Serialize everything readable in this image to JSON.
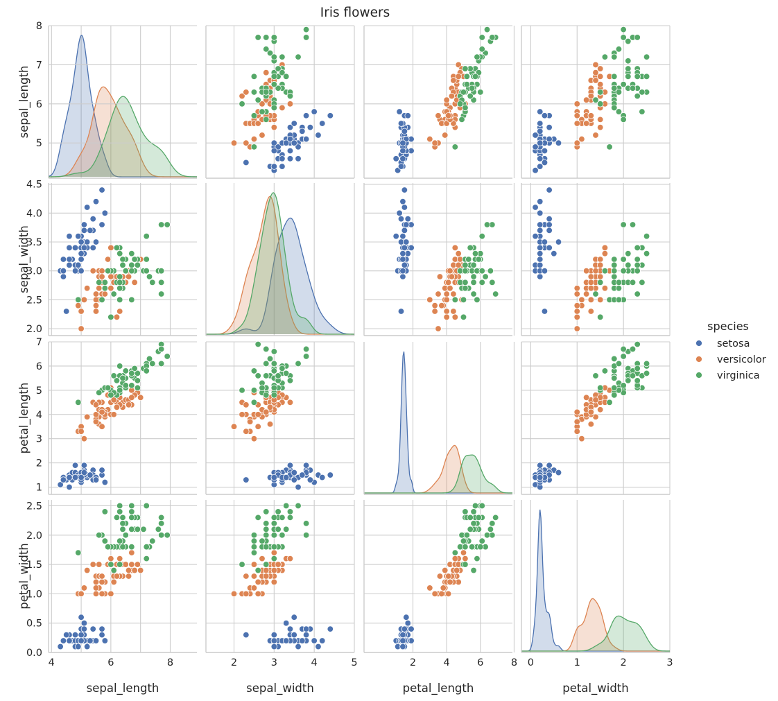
{
  "chart_data": {
    "type": "scatter",
    "title": "Iris flowers",
    "variables": [
      "sepal_length",
      "sepal_width",
      "petal_length",
      "petal_width"
    ],
    "axes": {
      "sepal_length": {
        "lim": [
          3.9,
          8.9
        ],
        "ticks": [
          4,
          6,
          8
        ],
        "grid": [
          4,
          5,
          6,
          7,
          8
        ],
        "yticks": [
          5,
          6,
          7,
          8
        ],
        "ylim": [
          4.1,
          8.0
        ]
      },
      "sepal_width": {
        "lim": [
          1.3,
          5.0
        ],
        "ticks": [
          2,
          3,
          4,
          5
        ],
        "grid": [
          2,
          3,
          4,
          5
        ],
        "yticks": [
          2.0,
          2.5,
          3.0,
          3.5,
          4.0,
          4.5
        ],
        "ylim": [
          1.88,
          4.52
        ]
      },
      "petal_length": {
        "lim": [
          -0.9,
          7.9
        ],
        "ticks": [
          2,
          4,
          6,
          8
        ],
        "grid": [
          2,
          4,
          6,
          8
        ],
        "yticks": [
          1,
          2,
          3,
          4,
          5,
          6,
          7
        ],
        "ylim": [
          0.7,
          7.0
        ]
      },
      "petal_width": {
        "lim": [
          -0.2,
          3.0
        ],
        "ticks": [
          0,
          1,
          2,
          3
        ],
        "grid": [
          0,
          1,
          2,
          3
        ],
        "yticks": [
          0.0,
          0.5,
          1.0,
          1.5,
          2.0,
          2.5
        ],
        "ylim": [
          0.0,
          2.6
        ]
      }
    },
    "legend": {
      "title": "species",
      "position": "right"
    },
    "grid": true,
    "series": [
      {
        "name": "setosa",
        "color": "#4c72b0",
        "columns": [
          "sepal_length",
          "sepal_width",
          "petal_length",
          "petal_width"
        ],
        "points": [
          [
            5.1,
            3.5,
            1.4,
            0.2
          ],
          [
            4.9,
            3.0,
            1.4,
            0.2
          ],
          [
            4.7,
            3.2,
            1.3,
            0.2
          ],
          [
            4.6,
            3.1,
            1.5,
            0.2
          ],
          [
            5.0,
            3.6,
            1.4,
            0.2
          ],
          [
            5.4,
            3.9,
            1.7,
            0.4
          ],
          [
            4.6,
            3.4,
            1.4,
            0.3
          ],
          [
            5.0,
            3.4,
            1.5,
            0.2
          ],
          [
            4.4,
            2.9,
            1.4,
            0.2
          ],
          [
            4.9,
            3.1,
            1.5,
            0.1
          ],
          [
            5.4,
            3.7,
            1.5,
            0.2
          ],
          [
            4.8,
            3.4,
            1.6,
            0.2
          ],
          [
            4.8,
            3.0,
            1.4,
            0.1
          ],
          [
            4.3,
            3.0,
            1.1,
            0.1
          ],
          [
            5.8,
            4.0,
            1.2,
            0.2
          ],
          [
            5.7,
            4.4,
            1.5,
            0.4
          ],
          [
            5.4,
            3.9,
            1.3,
            0.4
          ],
          [
            5.1,
            3.5,
            1.4,
            0.3
          ],
          [
            5.7,
            3.8,
            1.7,
            0.3
          ],
          [
            5.1,
            3.8,
            1.5,
            0.3
          ],
          [
            5.4,
            3.4,
            1.7,
            0.2
          ],
          [
            5.1,
            3.7,
            1.5,
            0.4
          ],
          [
            4.6,
            3.6,
            1.0,
            0.2
          ],
          [
            5.1,
            3.3,
            1.7,
            0.5
          ],
          [
            4.8,
            3.4,
            1.9,
            0.2
          ],
          [
            5.0,
            3.0,
            1.6,
            0.2
          ],
          [
            5.0,
            3.4,
            1.6,
            0.4
          ],
          [
            5.2,
            3.5,
            1.5,
            0.2
          ],
          [
            5.2,
            3.4,
            1.4,
            0.2
          ],
          [
            4.7,
            3.2,
            1.6,
            0.2
          ],
          [
            4.8,
            3.1,
            1.6,
            0.2
          ],
          [
            5.4,
            3.4,
            1.5,
            0.4
          ],
          [
            5.2,
            4.1,
            1.5,
            0.1
          ],
          [
            5.5,
            4.2,
            1.4,
            0.2
          ],
          [
            4.9,
            3.1,
            1.5,
            0.2
          ],
          [
            5.0,
            3.2,
            1.2,
            0.2
          ],
          [
            5.5,
            3.5,
            1.3,
            0.2
          ],
          [
            4.9,
            3.6,
            1.4,
            0.1
          ],
          [
            4.4,
            3.0,
            1.3,
            0.2
          ],
          [
            5.1,
            3.4,
            1.5,
            0.2
          ],
          [
            5.0,
            3.5,
            1.3,
            0.3
          ],
          [
            4.5,
            2.3,
            1.3,
            0.3
          ],
          [
            4.4,
            3.2,
            1.3,
            0.2
          ],
          [
            5.0,
            3.5,
            1.6,
            0.6
          ],
          [
            5.1,
            3.8,
            1.9,
            0.4
          ],
          [
            4.8,
            3.0,
            1.4,
            0.3
          ],
          [
            5.1,
            3.8,
            1.6,
            0.2
          ],
          [
            4.6,
            3.2,
            1.4,
            0.2
          ],
          [
            5.3,
            3.7,
            1.5,
            0.2
          ],
          [
            5.0,
            3.3,
            1.4,
            0.2
          ]
        ]
      },
      {
        "name": "versicolor",
        "color": "#dd8452",
        "columns": [
          "sepal_length",
          "sepal_width",
          "petal_length",
          "petal_width"
        ],
        "points": [
          [
            7.0,
            3.2,
            4.7,
            1.4
          ],
          [
            6.4,
            3.2,
            4.5,
            1.5
          ],
          [
            6.9,
            3.1,
            4.9,
            1.5
          ],
          [
            5.5,
            2.3,
            4.0,
            1.3
          ],
          [
            6.5,
            2.8,
            4.6,
            1.5
          ],
          [
            5.7,
            2.8,
            4.5,
            1.3
          ],
          [
            6.3,
            3.3,
            4.7,
            1.6
          ],
          [
            4.9,
            2.4,
            3.3,
            1.0
          ],
          [
            6.6,
            2.9,
            4.6,
            1.3
          ],
          [
            5.2,
            2.7,
            3.9,
            1.4
          ],
          [
            5.0,
            2.0,
            3.5,
            1.0
          ],
          [
            5.9,
            3.0,
            4.2,
            1.5
          ],
          [
            6.0,
            2.2,
            4.0,
            1.0
          ],
          [
            6.1,
            2.9,
            4.7,
            1.4
          ],
          [
            5.6,
            2.9,
            3.6,
            1.3
          ],
          [
            6.7,
            3.1,
            4.4,
            1.4
          ],
          [
            5.6,
            3.0,
            4.5,
            1.5
          ],
          [
            5.8,
            2.7,
            4.1,
            1.0
          ],
          [
            6.2,
            2.2,
            4.5,
            1.5
          ],
          [
            5.6,
            2.5,
            3.9,
            1.1
          ],
          [
            5.9,
            3.2,
            4.8,
            1.8
          ],
          [
            6.1,
            2.8,
            4.0,
            1.3
          ],
          [
            6.3,
            2.5,
            4.9,
            1.5
          ],
          [
            6.1,
            2.8,
            4.7,
            1.2
          ],
          [
            6.4,
            2.9,
            4.3,
            1.3
          ],
          [
            6.6,
            3.0,
            4.4,
            1.4
          ],
          [
            6.8,
            2.8,
            4.8,
            1.4
          ],
          [
            6.7,
            3.0,
            5.0,
            1.7
          ],
          [
            6.0,
            2.9,
            4.5,
            1.5
          ],
          [
            5.7,
            2.6,
            3.5,
            1.0
          ],
          [
            5.5,
            2.4,
            3.8,
            1.1
          ],
          [
            5.5,
            2.4,
            3.7,
            1.0
          ],
          [
            5.8,
            2.7,
            3.9,
            1.2
          ],
          [
            6.0,
            2.7,
            5.1,
            1.6
          ],
          [
            5.4,
            3.0,
            4.5,
            1.5
          ],
          [
            6.0,
            3.4,
            4.5,
            1.6
          ],
          [
            6.7,
            3.1,
            4.7,
            1.5
          ],
          [
            6.3,
            2.3,
            4.4,
            1.3
          ],
          [
            5.6,
            3.0,
            4.1,
            1.3
          ],
          [
            5.5,
            2.5,
            4.0,
            1.3
          ],
          [
            5.5,
            2.6,
            4.4,
            1.2
          ],
          [
            6.1,
            3.0,
            4.6,
            1.4
          ],
          [
            5.8,
            2.6,
            4.0,
            1.2
          ],
          [
            5.0,
            2.3,
            3.3,
            1.0
          ],
          [
            5.6,
            2.7,
            4.2,
            1.3
          ],
          [
            5.7,
            3.0,
            4.2,
            1.2
          ],
          [
            5.7,
            2.9,
            4.2,
            1.3
          ],
          [
            6.2,
            2.9,
            4.3,
            1.3
          ],
          [
            5.1,
            2.5,
            3.0,
            1.1
          ],
          [
            5.7,
            2.8,
            4.1,
            1.3
          ]
        ]
      },
      {
        "name": "virginica",
        "color": "#55a868",
        "columns": [
          "sepal_length",
          "sepal_width",
          "petal_length",
          "petal_width"
        ],
        "points": [
          [
            6.3,
            3.3,
            6.0,
            2.5
          ],
          [
            5.8,
            2.7,
            5.1,
            1.9
          ],
          [
            7.1,
            3.0,
            5.9,
            2.1
          ],
          [
            6.3,
            2.9,
            5.6,
            1.8
          ],
          [
            6.5,
            3.0,
            5.8,
            2.2
          ],
          [
            7.6,
            3.0,
            6.6,
            2.1
          ],
          [
            4.9,
            2.5,
            4.5,
            1.7
          ],
          [
            7.3,
            2.9,
            6.3,
            1.8
          ],
          [
            6.7,
            2.5,
            5.8,
            1.8
          ],
          [
            7.2,
            3.6,
            6.1,
            2.5
          ],
          [
            6.5,
            3.2,
            5.1,
            2.0
          ],
          [
            6.4,
            2.7,
            5.3,
            1.9
          ],
          [
            6.8,
            3.0,
            5.5,
            2.1
          ],
          [
            5.7,
            2.5,
            5.0,
            2.0
          ],
          [
            5.8,
            2.8,
            5.1,
            2.4
          ],
          [
            6.4,
            3.2,
            5.3,
            2.3
          ],
          [
            6.5,
            3.0,
            5.5,
            1.8
          ],
          [
            7.7,
            3.8,
            6.7,
            2.2
          ],
          [
            7.7,
            2.6,
            6.9,
            2.3
          ],
          [
            6.0,
            2.2,
            5.0,
            1.5
          ],
          [
            6.9,
            3.2,
            5.7,
            2.3
          ],
          [
            5.6,
            2.8,
            4.9,
            2.0
          ],
          [
            7.7,
            2.8,
            6.7,
            2.0
          ],
          [
            6.3,
            2.7,
            4.9,
            1.8
          ],
          [
            6.7,
            3.3,
            5.7,
            2.1
          ],
          [
            7.2,
            3.2,
            6.0,
            1.8
          ],
          [
            6.2,
            2.8,
            4.8,
            1.8
          ],
          [
            6.1,
            3.0,
            4.9,
            1.8
          ],
          [
            6.4,
            2.8,
            5.6,
            2.1
          ],
          [
            7.2,
            3.0,
            5.8,
            1.6
          ],
          [
            7.4,
            2.8,
            6.1,
            1.9
          ],
          [
            7.9,
            3.8,
            6.4,
            2.0
          ],
          [
            6.4,
            2.8,
            5.6,
            2.2
          ],
          [
            6.3,
            2.8,
            5.1,
            1.5
          ],
          [
            6.1,
            2.6,
            5.6,
            1.4
          ],
          [
            7.7,
            3.0,
            6.1,
            2.3
          ],
          [
            6.3,
            3.4,
            5.6,
            2.4
          ],
          [
            6.4,
            3.1,
            5.5,
            1.8
          ],
          [
            6.0,
            3.0,
            4.8,
            1.8
          ],
          [
            6.9,
            3.1,
            5.4,
            2.1
          ],
          [
            6.7,
            3.1,
            5.6,
            2.4
          ],
          [
            6.9,
            3.1,
            5.1,
            2.3
          ],
          [
            5.8,
            2.7,
            5.1,
            1.9
          ],
          [
            6.8,
            3.2,
            5.9,
            2.3
          ],
          [
            6.7,
            3.3,
            5.7,
            2.5
          ],
          [
            6.7,
            3.0,
            5.2,
            2.3
          ],
          [
            6.3,
            2.5,
            5.0,
            1.9
          ],
          [
            6.5,
            3.0,
            5.2,
            2.0
          ],
          [
            6.2,
            3.4,
            5.4,
            2.3
          ],
          [
            5.9,
            3.0,
            5.1,
            1.8
          ]
        ]
      }
    ]
  }
}
